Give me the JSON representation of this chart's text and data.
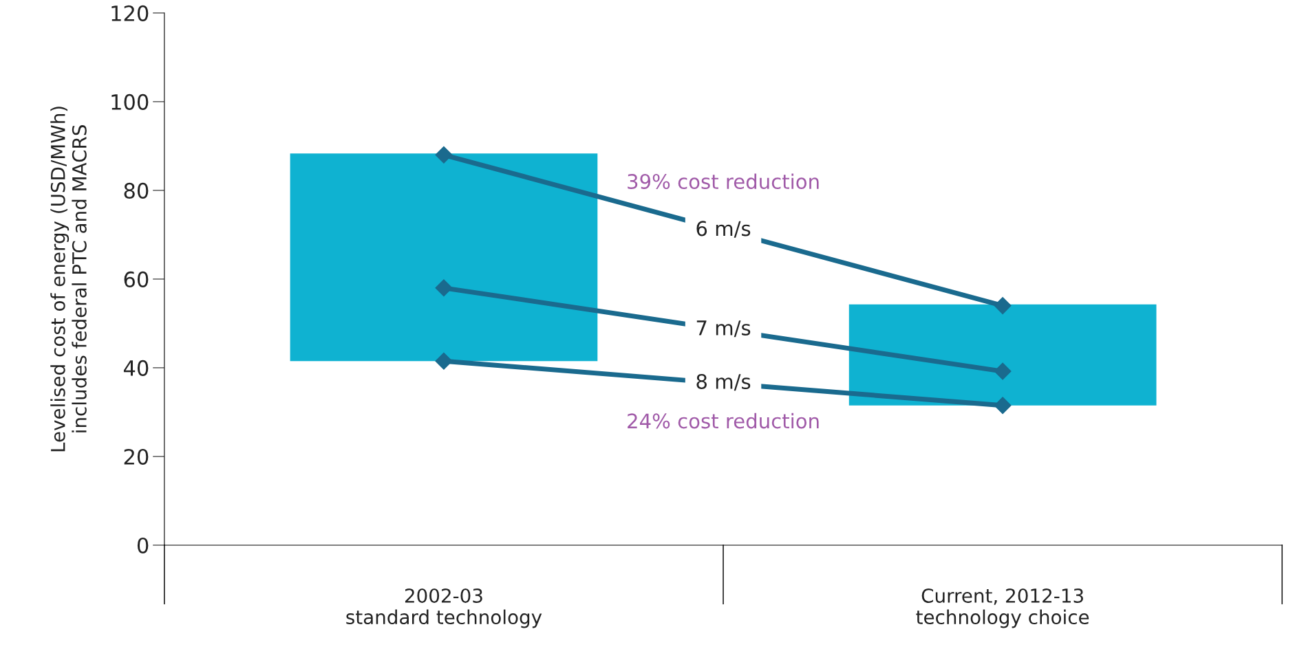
{
  "chart_data": {
    "type": "bar",
    "ylabel": "Levelised cost of energy (USD/MWh)\nincludes federal PTC and MACRS",
    "categories": [
      "2002-03\nstandard technology",
      "Current, 2012-13\ntechnology choice"
    ],
    "series": [
      {
        "color": "#0fb2d1",
        "base": [
          41.5,
          31.5
        ],
        "values": [
          46.8,
          22.8
        ]
      },
      {
        "type": "line",
        "name": "6 m/s",
        "color": "#1a6a8e",
        "values": [
          88,
          54
        ]
      },
      {
        "type": "line",
        "name": "7 m/s",
        "color": "#1a6a8e",
        "values": [
          58,
          39.2
        ]
      },
      {
        "type": "line",
        "name": "8 m/s",
        "color": "#1a6a8e",
        "values": [
          41.5,
          31.5
        ]
      }
    ],
    "marker": "diamond",
    "ylim": [
      0,
      120
    ],
    "yticks": [
      0,
      20,
      40,
      60,
      80,
      100,
      120
    ],
    "grid": false,
    "legend": false,
    "annotations": [
      "39% cost reduction",
      "24% cost reduction"
    ]
  }
}
